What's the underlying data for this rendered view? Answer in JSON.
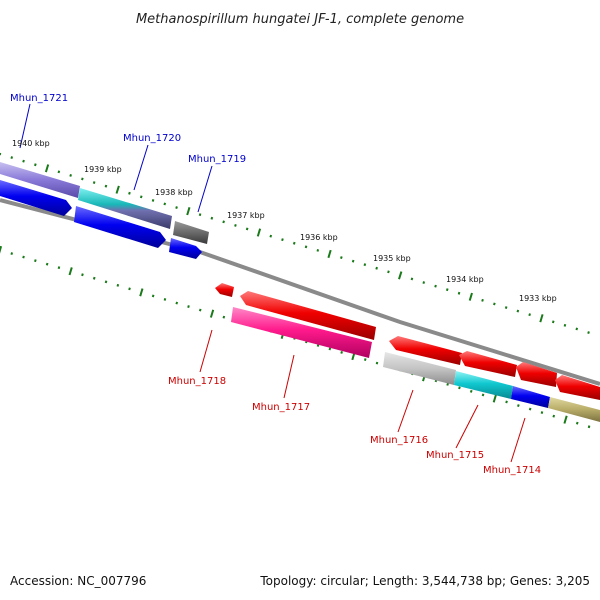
{
  "title": "Methanospirillum hungatei JF-1, complete genome",
  "footer": {
    "accession": "Accession: NC_007796",
    "topology": "Topology: circular; Length: 3,544,738 bp; Genes: 3,205"
  },
  "colors": {
    "forward_label": "#0000cc",
    "reverse_label": "#cc0000",
    "tick": "#1a7a1a",
    "backbone": "#808080"
  },
  "ticks": [
    "1940 kbp",
    "1939 kbp",
    "1938 kbp",
    "1937 kbp",
    "1936 kbp",
    "1935 kbp",
    "1934 kbp",
    "1933 kbp"
  ],
  "genes": [
    {
      "label": "Mhun_1721",
      "strand": "+"
    },
    {
      "label": "Mhun_1720",
      "strand": "+"
    },
    {
      "label": "Mhun_1719",
      "strand": "+"
    },
    {
      "label": "Mhun_1718",
      "strand": "-"
    },
    {
      "label": "Mhun_1717",
      "strand": "-"
    },
    {
      "label": "Mhun_1716",
      "strand": "-"
    },
    {
      "label": "Mhun_1715",
      "strand": "-"
    },
    {
      "label": "Mhun_1714",
      "strand": "-"
    }
  ]
}
